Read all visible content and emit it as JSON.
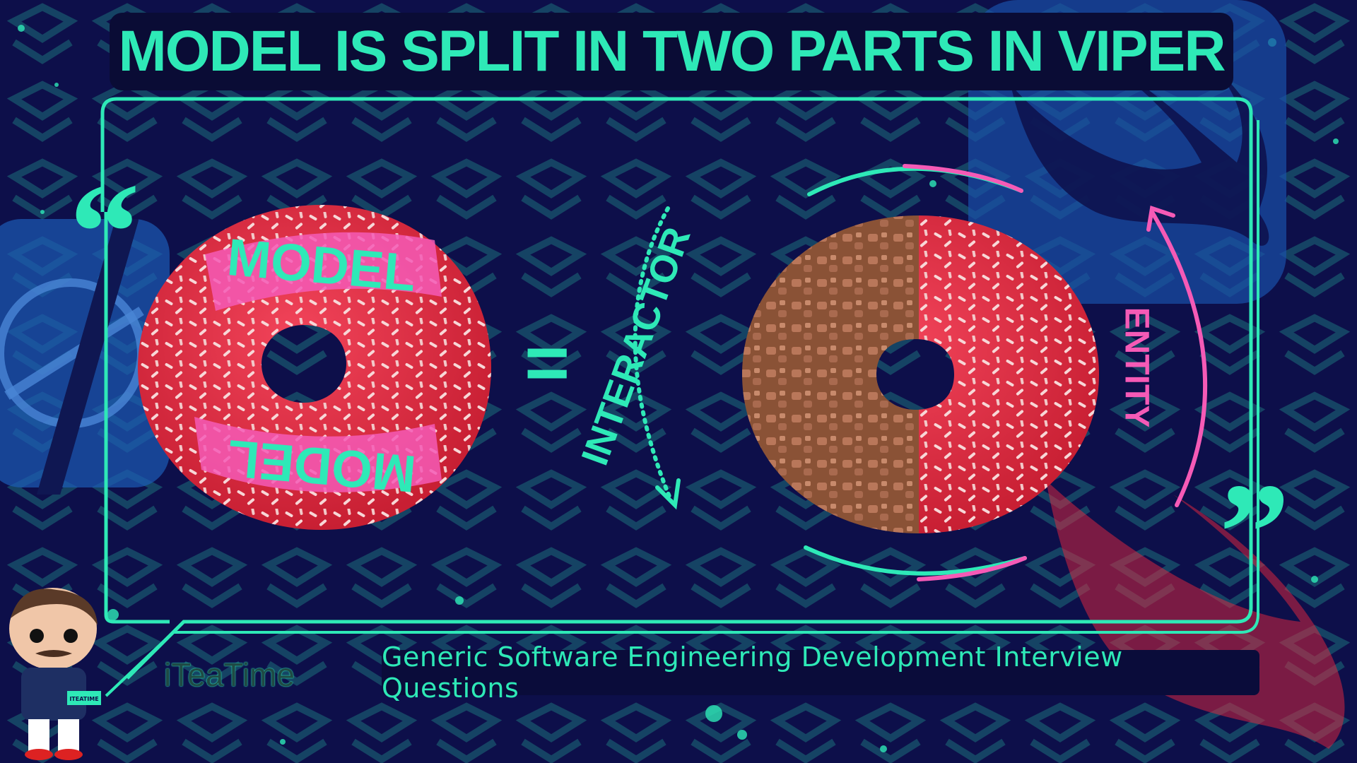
{
  "title": "MODEL IS SPLIT IN TWO PARTS IN VIPER",
  "donut_left": {
    "label_top": "MODEL",
    "label_bottom": "MODEL"
  },
  "equals": "=",
  "donut_right": {
    "label_left": "INTERACTOR",
    "label_right": "ENTITY"
  },
  "quote_open": "“",
  "quote_close": "”",
  "footer": {
    "brand": "iTeaTime",
    "subtitle": "Generic Software Engineering Development Interview Questions"
  },
  "avatar": {
    "shirt_text": "ITEATIME"
  },
  "colors": {
    "background": "#0d0f4a",
    "accent_teal": "#2ee9b7",
    "accent_pink": "#f55ab6",
    "donut_red": "#e8283e",
    "chocolate": "#8a5236"
  }
}
